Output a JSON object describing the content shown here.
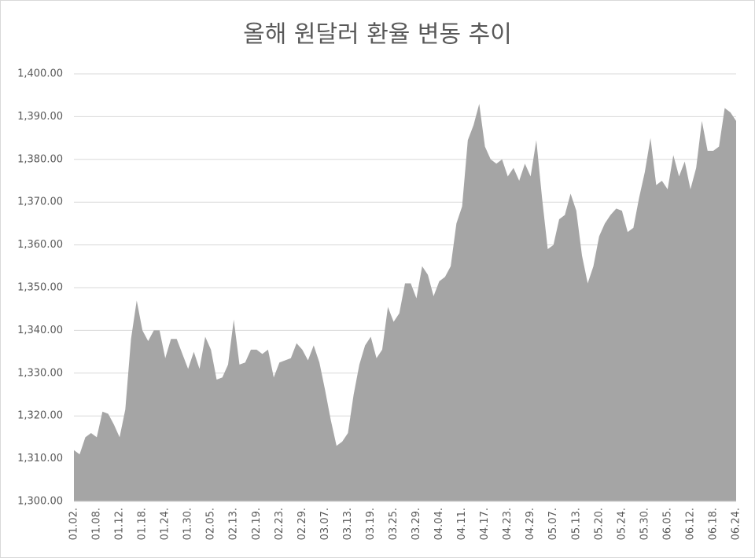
{
  "chart_data": {
    "type": "area",
    "title": "올해 원달러 환율 변동 추이",
    "categories": [
      "01.02.",
      null,
      null,
      null,
      "01.08.",
      null,
      null,
      null,
      "01.12.",
      null,
      null,
      null,
      "01.18.",
      null,
      null,
      null,
      "01.24.",
      null,
      null,
      null,
      "01.30.",
      null,
      null,
      null,
      "02.05.",
      null,
      null,
      null,
      "02.13.",
      null,
      null,
      null,
      "02.19.",
      null,
      null,
      null,
      "02.23.",
      null,
      null,
      null,
      "02.29.",
      null,
      null,
      null,
      "03.07.",
      null,
      null,
      null,
      "03.13.",
      null,
      null,
      null,
      "03.19.",
      null,
      null,
      null,
      "03.25.",
      null,
      null,
      null,
      "03.29.",
      null,
      null,
      null,
      "04.04.",
      null,
      null,
      null,
      "04.11.",
      null,
      null,
      null,
      "04.17.",
      null,
      null,
      null,
      "04.23.",
      null,
      null,
      null,
      "04.29.",
      null,
      null,
      null,
      "05.07.",
      null,
      null,
      null,
      "05.13.",
      null,
      null,
      null,
      "05.20.",
      null,
      null,
      null,
      "05.24.",
      null,
      null,
      null,
      "05.30.",
      null,
      null,
      null,
      "06.05.",
      null,
      null,
      null,
      "06.12.",
      null,
      null,
      null,
      "06.18.",
      null,
      null,
      null,
      "06.24."
    ],
    "values": [
      1312,
      1311,
      1315,
      1316,
      1315,
      1321,
      1320.5,
      1318,
      1315,
      1321.5,
      1338,
      1347,
      1340,
      1337.5,
      1340,
      1340,
      1333.5,
      1338,
      1338,
      1334.5,
      1331,
      1335,
      1331,
      1338.5,
      1335.5,
      1328.5,
      1329,
      1332,
      1342.5,
      1332,
      1332.5,
      1335.5,
      1335.5,
      1334.5,
      1335.5,
      1329,
      1332.5,
      1333,
      1333.5,
      1337,
      1335.5,
      1333,
      1336.5,
      1332.5,
      1326,
      1319,
      1313,
      1314,
      1316,
      1325,
      1332,
      1336.5,
      1338.5,
      1333.5,
      1335.5,
      1345.5,
      1342,
      1344,
      1351,
      1351,
      1347.5,
      1355,
      1353,
      1348,
      1351.5,
      1352.5,
      1355,
      1365,
      1369,
      1384.5,
      1388,
      1393,
      1383,
      1380,
      1379,
      1380,
      1376,
      1378,
      1375,
      1379,
      1376,
      1384.5,
      1371,
      1359,
      1360,
      1366,
      1367,
      1372,
      1368,
      1357.5,
      1351,
      1355,
      1362,
      1365,
      1367,
      1368.5,
      1368,
      1363,
      1364,
      1371,
      1377,
      1385,
      1374,
      1375,
      1373,
      1381,
      1376,
      1379.5,
      1373,
      1378,
      1389,
      1382,
      1382,
      1383,
      1392,
      1391,
      1389
    ],
    "color": "#a5a5a5",
    "ylim": [
      1300,
      1400
    ],
    "yticks": [
      {
        "value": 1300,
        "label": "1,300.00"
      },
      {
        "value": 1310,
        "label": "1,310.00"
      },
      {
        "value": 1320,
        "label": "1,320.00"
      },
      {
        "value": 1330,
        "label": "1,330.00"
      },
      {
        "value": 1340,
        "label": "1,340.00"
      },
      {
        "value": 1350,
        "label": "1,350.00"
      },
      {
        "value": 1360,
        "label": "1,360.00"
      },
      {
        "value": 1370,
        "label": "1,370.00"
      },
      {
        "value": 1380,
        "label": "1,380.00"
      },
      {
        "value": 1390,
        "label": "1,390.00"
      },
      {
        "value": 1400,
        "label": "1,400.00"
      }
    ],
    "grid": true
  }
}
